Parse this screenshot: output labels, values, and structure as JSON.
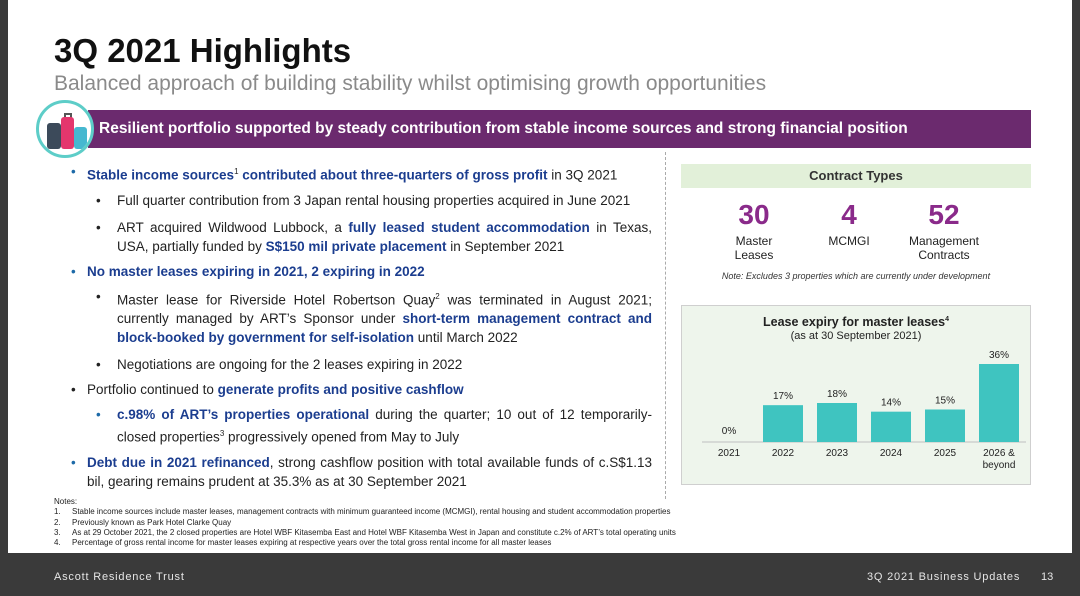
{
  "title": "3Q 2021 Highlights",
  "subtitle": "Balanced approach of building stability whilst optimising growth opportunities",
  "banner": "Resilient portfolio supported by steady contribution from stable income sources and strong financial position",
  "colors": {
    "purple": "#6b2a6e",
    "teal": "#3fc4c0",
    "blue_text": "#1b3d8f",
    "accent_number": "#8a2a8a"
  },
  "icons": {
    "banner_icon": "luggage-icon"
  },
  "bullets": {
    "b1": {
      "hl": "Stable income sources",
      "sup": "1",
      "hl2": " contributed about three-quarters of gross profit",
      "rest": " in 3Q 2021"
    },
    "b1a": "Full quarter contribution from 3 Japan rental housing properties acquired in June 2021",
    "b1b": {
      "t1": "ART acquired Wildwood Lubbock, a ",
      "hl1": "fully leased student accommodation",
      "t2": " in Texas, USA, partially funded by ",
      "hl2": "S$150 mil private placement",
      "t3": " in September 2021"
    },
    "b2": "No master leases expiring in 2021, 2 expiring in 2022",
    "b2a": {
      "t1": "Master lease for Riverside Hotel Robertson Quay",
      "sup": "2",
      "t2": " was terminated in August 2021; currently managed by ART’s Sponsor under ",
      "hl1": "short-term management contract and block-booked by government for self-isolation",
      "t3": " until March 2022"
    },
    "b2b": "Negotiations are ongoing for the 2 leases expiring in 2022",
    "b3": {
      "t1": "Portfolio continued to ",
      "hl": "generate profits and positive cashflow"
    },
    "b3a": {
      "hl": "c.98% of ART’s properties operational",
      "t1": " during the quarter; 10 out of 12 temporarily-closed properties",
      "sup": "3",
      "t2": " progressively opened from May to July"
    },
    "b4": {
      "hl": "Debt due in 2021 refinanced",
      "t1": ", strong cashflow position with total available funds of c.S$1.13 bil, gearing remains prudent at 35.3% as at 30 September 2021"
    }
  },
  "contract_types": {
    "header": "Contract Types",
    "items": [
      {
        "number": "30",
        "label": "Master\nLeases"
      },
      {
        "number": "4",
        "label": "MCMGI"
      },
      {
        "number": "52",
        "label": "Management\nContracts"
      }
    ],
    "note": "Note: Excludes 3 properties which are currently under development"
  },
  "chart_data": {
    "type": "bar",
    "title": "Lease expiry for master leases",
    "title_sup": "4",
    "subtitle": "(as at 30 September 2021)",
    "categories": [
      "2021",
      "2022",
      "2023",
      "2024",
      "2025",
      "2026 &\nbeyond"
    ],
    "values": [
      0,
      17,
      18,
      14,
      15,
      36
    ],
    "value_labels": [
      "0%",
      "17%",
      "18%",
      "14%",
      "15%",
      "36%"
    ],
    "ylim": [
      0,
      36
    ],
    "grid": false,
    "legend": "none",
    "bar_color": "#3fc4c0"
  },
  "notes": {
    "heading": "Notes:",
    "items": [
      {
        "n": "1.",
        "t": "Stable income sources include master leases, management contracts with minimum guaranteed income (MCMGI), rental housing and student accommodation properties"
      },
      {
        "n": "2.",
        "t": "Previously known as Park Hotel Clarke Quay"
      },
      {
        "n": "3.",
        "t": "As at 29 October 2021, the 2 closed properties are Hotel WBF Kitasemba East and Hotel WBF Kitasemba West in Japan and constitute c.2% of ART’s total operating units"
      },
      {
        "n": "4.",
        "t": "Percentage of gross rental income for master leases expiring at respective years over the total gross rental income for all master leases"
      }
    ]
  },
  "footer": {
    "left": "Ascott Residence Trust",
    "right": "3Q 2021 Business Updates",
    "page": "13"
  }
}
